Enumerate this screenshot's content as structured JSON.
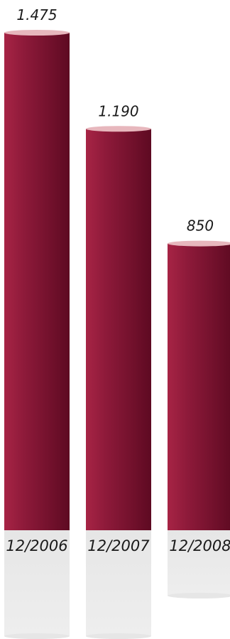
{
  "chart_data": {
    "type": "bar",
    "categories": [
      "12/2006",
      "12/2007",
      "12/2008"
    ],
    "values": [
      1475,
      1190,
      850
    ],
    "value_labels": [
      "1.475",
      "1.190",
      "850"
    ],
    "ylim": [
      0,
      1475
    ],
    "grid": false,
    "legend": "none",
    "colors": {
      "bar_dark": "#5e0a22",
      "bar_mid": "#8e1a3a",
      "bar_light": "#a72445",
      "bar_top": "#e7b7bd",
      "base": "#e6e6e6",
      "base_top": "#d9d9d9",
      "label": "#1a1a1a"
    }
  }
}
